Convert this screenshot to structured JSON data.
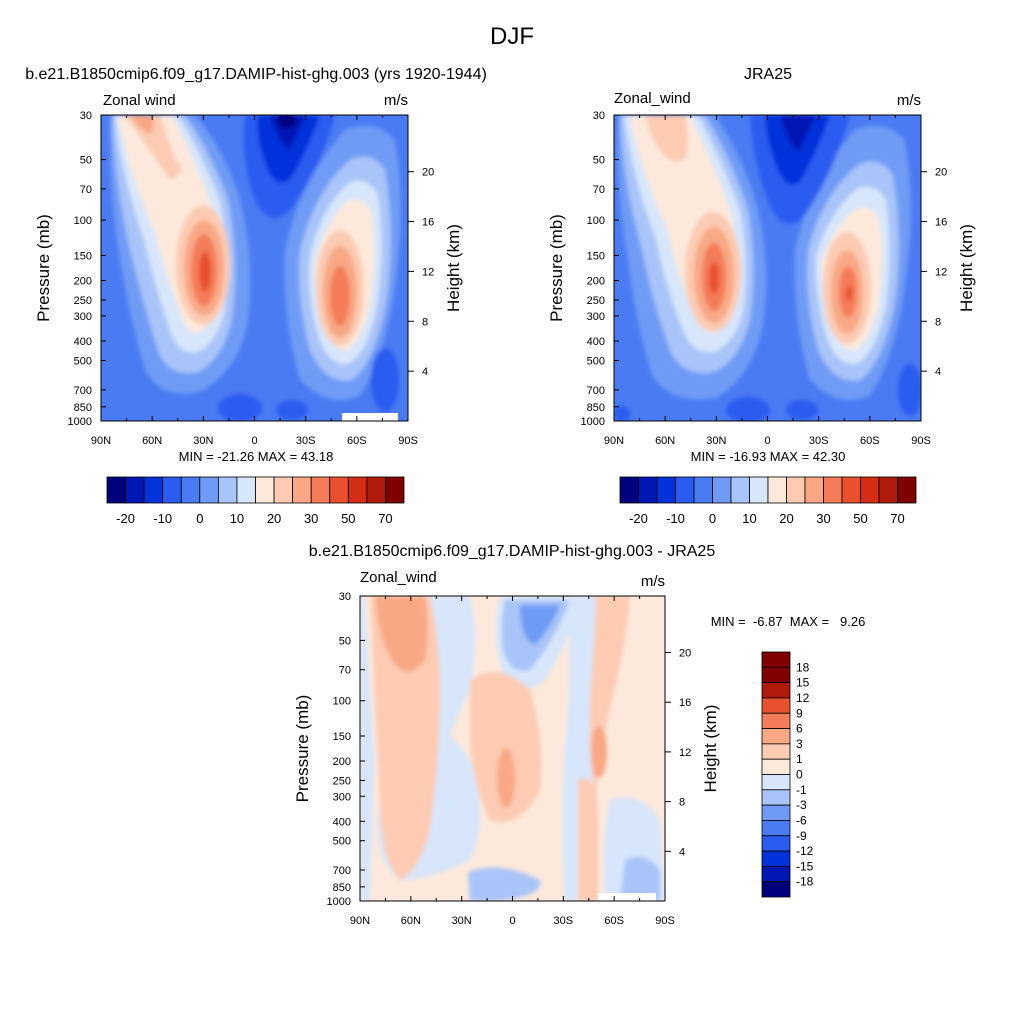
{
  "figure_title": "DJF",
  "colors": {
    "model_obs_levels": [
      "#00007f",
      "#0018b3",
      "#0033d9",
      "#2b5cf0",
      "#4a7bf2",
      "#6f9bf5",
      "#a9c4f8",
      "#d7e6fb",
      "#fde9db",
      "#fccbb2",
      "#f8a885",
      "#f47c58",
      "#e8502e",
      "#d42e14",
      "#b01a0a",
      "#7f0000"
    ],
    "diff_levels": [
      "#00007f",
      "#0018b3",
      "#0033d9",
      "#2b5cf0",
      "#4a7bf2",
      "#6f9bf5",
      "#a9c4f8",
      "#d7e6fb",
      "#fde9db",
      "#fccbb2",
      "#f8a885",
      "#f47c58",
      "#e8502e",
      "#b01a0a",
      "#7f0000"
    ]
  },
  "chart_data": [
    {
      "type": "heatmap",
      "title": "b.e21.B1850cmip6.f09_g17.DAMIP-hist-ghg.003 (yrs 1920-1944)",
      "variable_label": "Zonal wind",
      "units": "m/s",
      "ylabel": "Pressure (mb)",
      "ylabel_right": "Height (km)",
      "x_ticks": [
        "90N",
        "60N",
        "30N",
        "0",
        "30S",
        "60S",
        "90S"
      ],
      "x_range": [
        90,
        -90
      ],
      "y_ticks": [
        "30",
        "50",
        "70",
        "100",
        "150",
        "200",
        "250",
        "300",
        "400",
        "500",
        "700",
        "850",
        "1000"
      ],
      "y_range": [
        30,
        1000
      ],
      "y_scale": "log",
      "height_ticks": [
        "20",
        "16",
        "12",
        "8",
        "4"
      ],
      "min_max": "MIN = -21.26  MAX = 43.18",
      "colorbar_labels": [
        "-20",
        "-10",
        "0",
        "10",
        "20",
        "30",
        "50",
        "70"
      ],
      "features": [
        {
          "kind": "jet",
          "lat": 30,
          "pressure": 200,
          "value": 43.18
        },
        {
          "kind": "jet",
          "lat": -45,
          "pressure": 250,
          "value": 33
        },
        {
          "kind": "jet",
          "lat": 60,
          "pressure": 30,
          "value": 20
        },
        {
          "kind": "easterly",
          "lat": -8,
          "pressure": 30,
          "value": -21.26
        }
      ]
    },
    {
      "type": "heatmap",
      "title": "JRA25",
      "variable_label": "Zonal_wind",
      "units": "m/s",
      "ylabel": "Pressure (mb)",
      "ylabel_right": "Height (km)",
      "x_ticks": [
        "90N",
        "60N",
        "30N",
        "0",
        "30S",
        "60S",
        "90S"
      ],
      "x_range": [
        90,
        -90
      ],
      "y_ticks": [
        "30",
        "50",
        "70",
        "100",
        "150",
        "200",
        "250",
        "300",
        "400",
        "500",
        "700",
        "850",
        "1000"
      ],
      "y_range": [
        30,
        1000
      ],
      "y_scale": "log",
      "height_ticks": [
        "20",
        "16",
        "12",
        "8",
        "4"
      ],
      "min_max": "MIN = -16.93  MAX = 42.30",
      "colorbar_labels": [
        "-20",
        "-10",
        "0",
        "10",
        "20",
        "30",
        "50",
        "70"
      ],
      "features": [
        {
          "kind": "jet",
          "lat": 30,
          "pressure": 200,
          "value": 42.3
        },
        {
          "kind": "jet",
          "lat": -48,
          "pressure": 250,
          "value": 32
        },
        {
          "kind": "jet",
          "lat": 62,
          "pressure": 40,
          "value": 18
        },
        {
          "kind": "easterly",
          "lat": -10,
          "pressure": 30,
          "value": -16.93
        }
      ]
    },
    {
      "type": "heatmap",
      "title": "b.e21.B1850cmip6.f09_g17.DAMIP-hist-ghg.003 - JRA25",
      "variable_label": "Zonal_wind",
      "units": "m/s",
      "ylabel": "Pressure (mb)",
      "ylabel_right": "Height (km)",
      "x_ticks": [
        "90N",
        "60N",
        "30N",
        "0",
        "30S",
        "60S",
        "90S"
      ],
      "x_range": [
        90,
        -90
      ],
      "y_ticks": [
        "30",
        "50",
        "70",
        "100",
        "150",
        "200",
        "250",
        "300",
        "400",
        "500",
        "700",
        "850",
        "1000"
      ],
      "y_range": [
        30,
        1000
      ],
      "y_scale": "log",
      "height_ticks": [
        "20",
        "16",
        "12",
        "8",
        "4"
      ],
      "min_max": "MIN =  -6.87  MAX =   9.26",
      "colorbar_labels": [
        "18",
        "15",
        "12",
        "9",
        "6",
        "3",
        "1",
        "0",
        "-1",
        "-3",
        "-6",
        "-9",
        "-12",
        "-15",
        "-18"
      ],
      "features": [
        {
          "kind": "max",
          "lat": 68,
          "pressure": 35,
          "value": 9.26
        },
        {
          "kind": "min",
          "lat": -5,
          "pressure": 50,
          "value": -6.87
        }
      ]
    }
  ]
}
